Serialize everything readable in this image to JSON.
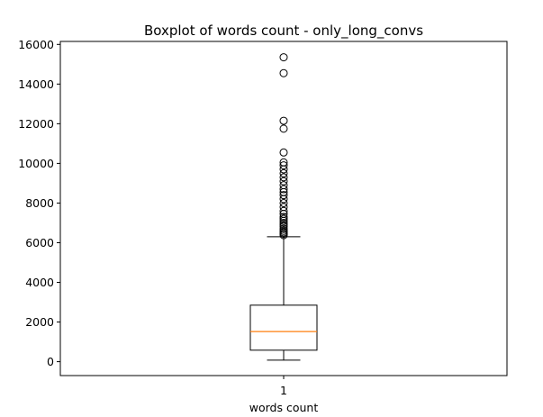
{
  "chart_data": {
    "type": "box",
    "title": "Boxplot of words count - only_long_convs",
    "xlabel": "words count",
    "ylabel": "",
    "x_tick_labels": [
      "1"
    ],
    "y_ticks": [
      0,
      2000,
      4000,
      6000,
      8000,
      10000,
      12000,
      14000,
      16000
    ],
    "ylim": [
      -700,
      16150
    ],
    "grid": false,
    "legend": "none",
    "box": {
      "category": "1",
      "whisker_low": 80,
      "q1": 580,
      "median": 1520,
      "q3": 2850,
      "whisker_high": 6300,
      "outliers": [
        6380,
        6450,
        6520,
        6600,
        6700,
        6820,
        6900,
        7000,
        7100,
        7200,
        7300,
        7450,
        7600,
        7800,
        8000,
        8200,
        8400,
        8550,
        8700,
        8900,
        9100,
        9300,
        9500,
        9700,
        9900,
        10050,
        10550,
        11750,
        12150,
        14550,
        15350
      ]
    },
    "colors": {
      "box": "#000000",
      "median": "#ff7f0e",
      "outlier_edge": "#000000"
    }
  }
}
